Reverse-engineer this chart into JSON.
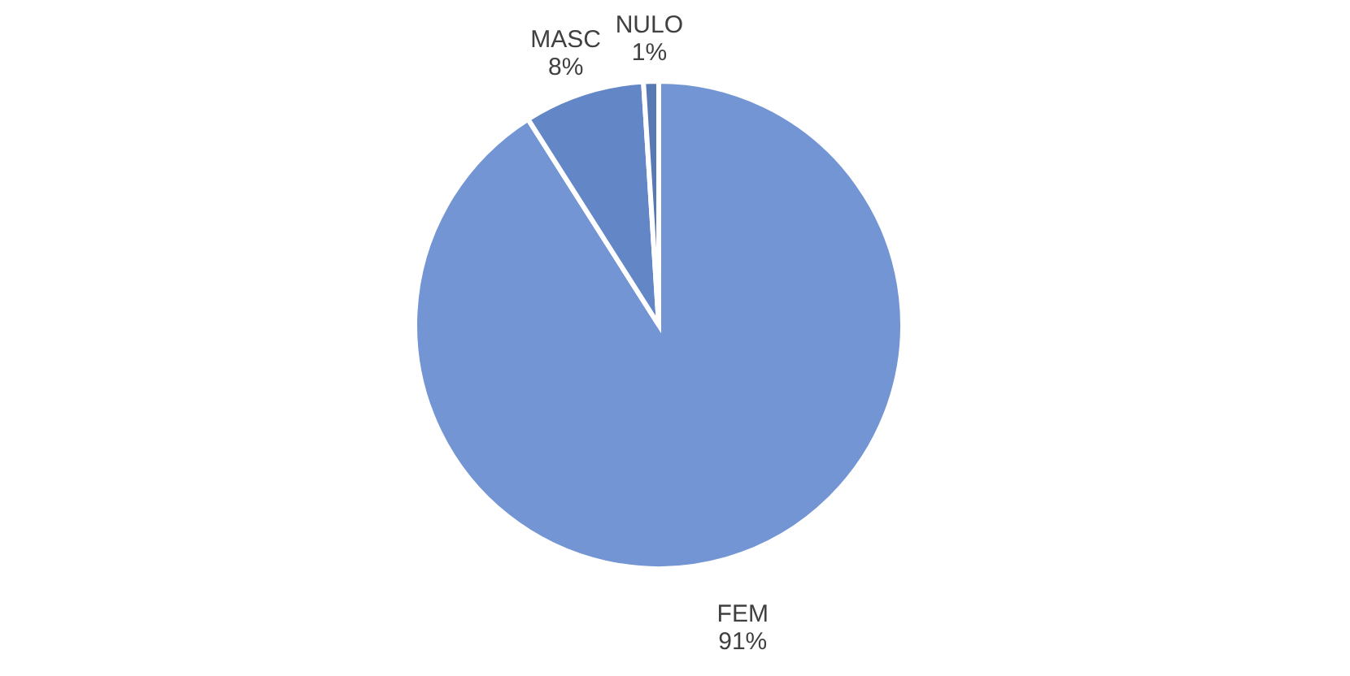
{
  "chart_data": {
    "type": "pie",
    "categories": [
      "FEM",
      "MASC",
      "NULO"
    ],
    "values": [
      91,
      8,
      1
    ],
    "value_labels": [
      "91%",
      "8%",
      "1%"
    ],
    "colors": [
      "#4472c4",
      "#2f5fb3",
      "#1f4e9c"
    ],
    "legend": false
  }
}
